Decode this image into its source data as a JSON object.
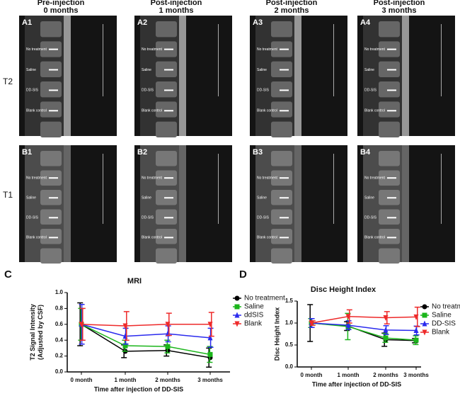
{
  "column_headers": [
    [
      "Pre-injection",
      "0 months"
    ],
    [
      "Post-injection",
      "1 months"
    ],
    [
      "Post-injection",
      "2 months"
    ],
    [
      "Post-injection",
      "3 months"
    ]
  ],
  "row_labels": [
    "T2",
    "T1"
  ],
  "images": [
    {
      "label": "A1",
      "annotations": [
        "No treatment",
        "Saline",
        "DD-SIS",
        "Blank control"
      ]
    },
    {
      "label": "A2",
      "annotations": [
        "No treatment",
        "Saline",
        "DD-SIS",
        "Blank control"
      ]
    },
    {
      "label": "A3",
      "annotations": [
        "No treatment",
        "Saline",
        "DD-SIS",
        "Blank control"
      ]
    },
    {
      "label": "A4",
      "annotations": [
        "No treatment",
        "Saline",
        "DD-SIS",
        "Blank control"
      ]
    },
    {
      "label": "B1",
      "annotations": [
        "No treatment",
        "Saline",
        "DD-SIS",
        "Blank control"
      ]
    },
    {
      "label": "B2",
      "annotations": [
        "No treatment",
        "Saline",
        "DD-SIS",
        "Blank control"
      ]
    },
    {
      "label": "B3",
      "annotations": [
        "No treatment",
        "Saline",
        "DD-SIS",
        "Blank control"
      ]
    },
    {
      "label": "B4",
      "annotations": [
        "No treatment",
        "Saline",
        "DD-SIS",
        "Blank control"
      ]
    }
  ],
  "chart_data": [
    {
      "type": "line",
      "panel": "C",
      "title": "MRI",
      "y_label": [
        "T2 Signal Intensity",
        "(Adjusted by CSF)"
      ],
      "x_label": "Time after injection of DD-SIS",
      "categories": [
        "0 month",
        "1 month",
        "2 months",
        "3 months"
      ],
      "ylim": [
        0,
        1.0
      ],
      "yticks": [
        {
          "value": 0,
          "label": "0.0"
        },
        0.2,
        0.4,
        0.6,
        0.8,
        {
          "value": 1.0,
          "label": "1.0"
        }
      ],
      "series": [
        {
          "name": "No treatment",
          "color": "#000000",
          "marker": "circle",
          "values": [
            0.6,
            0.26,
            0.27,
            0.18
          ],
          "errors": [
            0.27,
            0.08,
            0.07,
            0.12
          ]
        },
        {
          "name": "Saline",
          "color": "#1bb51b",
          "marker": "square",
          "values": [
            0.6,
            0.33,
            0.32,
            0.22
          ],
          "errors": [
            0.2,
            0.07,
            0.08,
            0.1
          ]
        },
        {
          "name": "ddSIS",
          "color": "#2a2aee",
          "marker": "triangle-up",
          "values": [
            0.6,
            0.45,
            0.48,
            0.43
          ],
          "errors": [
            0.25,
            0.1,
            0.1,
            0.12
          ]
        },
        {
          "name": "Blank",
          "color": "#ee2a2a",
          "marker": "triangle-down",
          "values": [
            0.6,
            0.58,
            0.6,
            0.6
          ],
          "errors": [
            0.2,
            0.18,
            0.14,
            0.15
          ]
        }
      ]
    },
    {
      "type": "line",
      "panel": "D",
      "title": "Disc Height Index",
      "y_label": [
        "Disc Height Index"
      ],
      "x_label": "Time after injection of DD-SIS",
      "categories": [
        "0 month",
        "1 month",
        "2 months",
        "3 months"
      ],
      "ylim": [
        0,
        1.5
      ],
      "yticks": [
        {
          "value": 0,
          "label": "0.0"
        },
        0.5,
        {
          "value": 1.0,
          "label": "1.0"
        },
        1.5
      ],
      "series": [
        {
          "name": "No treatment",
          "color": "#000000",
          "marker": "circle",
          "values": [
            1.0,
            0.93,
            0.62,
            0.6
          ],
          "errors": [
            0.42,
            0.1,
            0.15,
            0.05
          ]
        },
        {
          "name": "Saline",
          "color": "#1bb51b",
          "marker": "square",
          "values": [
            1.0,
            0.92,
            0.66,
            0.61
          ],
          "errors": [
            0.1,
            0.3,
            0.1,
            0.1
          ]
        },
        {
          "name": "DD-SIS",
          "color": "#2a2aee",
          "marker": "triangle-up",
          "values": [
            1.0,
            0.95,
            0.84,
            0.83
          ],
          "errors": [
            0.1,
            0.1,
            0.1,
            0.1
          ]
        },
        {
          "name": "Blank",
          "color": "#ee2a2a",
          "marker": "triangle-down",
          "values": [
            1.0,
            1.15,
            1.12,
            1.14
          ],
          "errors": [
            0.05,
            0.15,
            0.14,
            0.22
          ]
        }
      ]
    }
  ]
}
